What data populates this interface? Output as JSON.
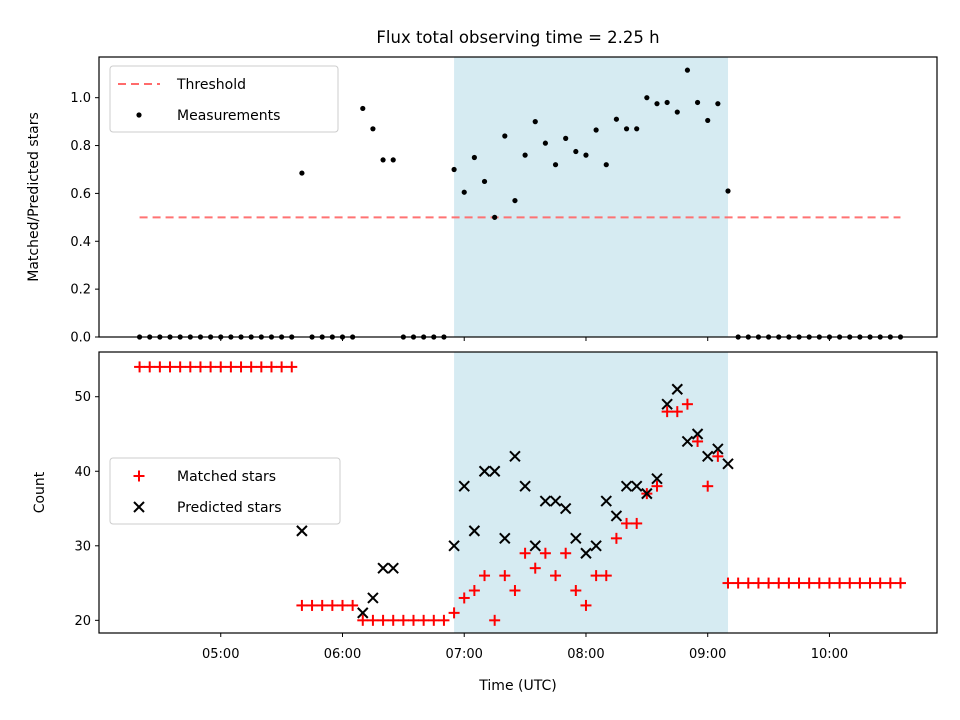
{
  "chart_data": [
    {
      "type": "scatter",
      "title": "Flux total observing time = 2.25 h",
      "xlabel": "",
      "ylabel": "Matched/Predicted stars",
      "ylim": [
        0,
        1.17
      ],
      "yticks": [
        "0.0",
        "0.2",
        "0.4",
        "0.6",
        "0.8",
        "1.0"
      ],
      "xlim": [
        "04:00",
        "10:53"
      ],
      "shaded_span": [
        "06:55",
        "09:10"
      ],
      "shaded_color": "#add8e6",
      "legend": "upper-left",
      "threshold": {
        "name": "Threshold",
        "value": 0.5,
        "x_from": "04:20",
        "x_to": "10:35",
        "color": "#ff6b6b",
        "style": "dashed"
      },
      "series": [
        {
          "name": "Measurements",
          "color": "#000000",
          "marker": "dot",
          "points": [
            [
              "04:20",
              0
            ],
            [
              "04:25",
              0
            ],
            [
              "04:30",
              0
            ],
            [
              "04:35",
              0
            ],
            [
              "04:40",
              0
            ],
            [
              "04:45",
              0
            ],
            [
              "04:50",
              0
            ],
            [
              "04:55",
              0
            ],
            [
              "05:00",
              0
            ],
            [
              "05:05",
              0
            ],
            [
              "05:10",
              0
            ],
            [
              "05:15",
              0
            ],
            [
              "05:20",
              0
            ],
            [
              "05:25",
              0
            ],
            [
              "05:30",
              0
            ],
            [
              "05:35",
              0
            ],
            [
              "05:40",
              0.685
            ],
            [
              "05:45",
              0
            ],
            [
              "05:50",
              0
            ],
            [
              "05:55",
              0
            ],
            [
              "06:00",
              0
            ],
            [
              "06:05",
              0
            ],
            [
              "06:10",
              0.955
            ],
            [
              "06:15",
              0.87
            ],
            [
              "06:20",
              0.74
            ],
            [
              "06:25",
              0.74
            ],
            [
              "06:30",
              0
            ],
            [
              "06:35",
              0
            ],
            [
              "06:40",
              0
            ],
            [
              "06:45",
              0
            ],
            [
              "06:50",
              0
            ],
            [
              "06:55",
              0.7
            ],
            [
              "07:00",
              0.605
            ],
            [
              "07:05",
              0.75
            ],
            [
              "07:10",
              0.65
            ],
            [
              "07:15",
              0.5
            ],
            [
              "07:20",
              0.84
            ],
            [
              "07:25",
              0.57
            ],
            [
              "07:30",
              0.76
            ],
            [
              "07:35",
              0.9
            ],
            [
              "07:40",
              0.81
            ],
            [
              "07:45",
              0.72
            ],
            [
              "07:50",
              0.83
            ],
            [
              "07:55",
              0.775
            ],
            [
              "08:00",
              0.76
            ],
            [
              "08:05",
              0.865
            ],
            [
              "08:10",
              0.72
            ],
            [
              "08:15",
              0.91
            ],
            [
              "08:20",
              0.87
            ],
            [
              "08:25",
              0.87
            ],
            [
              "08:30",
              1.0
            ],
            [
              "08:35",
              0.975
            ],
            [
              "08:40",
              0.98
            ],
            [
              "08:45",
              0.94
            ],
            [
              "08:50",
              1.115
            ],
            [
              "08:55",
              0.98
            ],
            [
              "09:00",
              0.905
            ],
            [
              "09:05",
              0.975
            ],
            [
              "09:10",
              0.61
            ],
            [
              "09:15",
              0
            ],
            [
              "09:20",
              0
            ],
            [
              "09:25",
              0
            ],
            [
              "09:30",
              0
            ],
            [
              "09:35",
              0
            ],
            [
              "09:40",
              0
            ],
            [
              "09:45",
              0
            ],
            [
              "09:50",
              0
            ],
            [
              "09:55",
              0
            ],
            [
              "10:00",
              0
            ],
            [
              "10:05",
              0
            ],
            [
              "10:10",
              0
            ],
            [
              "10:15",
              0
            ],
            [
              "10:20",
              0
            ],
            [
              "10:25",
              0
            ],
            [
              "10:30",
              0
            ],
            [
              "10:35",
              0
            ]
          ]
        }
      ]
    },
    {
      "type": "scatter",
      "title": "",
      "xlabel": "Time (UTC)",
      "ylabel": "Count",
      "ylim": [
        18.3,
        56
      ],
      "yticks": [
        "20",
        "30",
        "40",
        "50"
      ],
      "xticks": [
        "05:00",
        "06:00",
        "07:00",
        "08:00",
        "09:00",
        "10:00"
      ],
      "xlim": [
        "04:00",
        "10:53"
      ],
      "shaded_span": [
        "06:55",
        "09:10"
      ],
      "shaded_color": "#add8e6",
      "legend": "center-left",
      "series": [
        {
          "name": "Matched stars",
          "color": "#ff0000",
          "marker": "plus",
          "points": [
            [
              "04:20",
              54
            ],
            [
              "04:25",
              54
            ],
            [
              "04:30",
              54
            ],
            [
              "04:35",
              54
            ],
            [
              "04:40",
              54
            ],
            [
              "04:45",
              54
            ],
            [
              "04:50",
              54
            ],
            [
              "04:55",
              54
            ],
            [
              "05:00",
              54
            ],
            [
              "05:05",
              54
            ],
            [
              "05:10",
              54
            ],
            [
              "05:15",
              54
            ],
            [
              "05:20",
              54
            ],
            [
              "05:25",
              54
            ],
            [
              "05:30",
              54
            ],
            [
              "05:35",
              54
            ],
            [
              "05:40",
              22
            ],
            [
              "05:45",
              22
            ],
            [
              "05:50",
              22
            ],
            [
              "05:55",
              22
            ],
            [
              "06:00",
              22
            ],
            [
              "06:05",
              22
            ],
            [
              "06:10",
              20
            ],
            [
              "06:15",
              20
            ],
            [
              "06:20",
              20
            ],
            [
              "06:25",
              20
            ],
            [
              "06:30",
              20
            ],
            [
              "06:35",
              20
            ],
            [
              "06:40",
              20
            ],
            [
              "06:45",
              20
            ],
            [
              "06:50",
              20
            ],
            [
              "06:55",
              21
            ],
            [
              "07:00",
              23
            ],
            [
              "07:05",
              24
            ],
            [
              "07:10",
              26
            ],
            [
              "07:15",
              20
            ],
            [
              "07:20",
              26
            ],
            [
              "07:25",
              24
            ],
            [
              "07:30",
              29
            ],
            [
              "07:35",
              27
            ],
            [
              "07:40",
              29
            ],
            [
              "07:45",
              26
            ],
            [
              "07:50",
              29
            ],
            [
              "07:55",
              24
            ],
            [
              "08:00",
              22
            ],
            [
              "08:05",
              26
            ],
            [
              "08:10",
              26
            ],
            [
              "08:15",
              31
            ],
            [
              "08:20",
              33
            ],
            [
              "08:25",
              33
            ],
            [
              "08:30",
              37
            ],
            [
              "08:35",
              38
            ],
            [
              "08:40",
              48
            ],
            [
              "08:45",
              48
            ],
            [
              "08:50",
              49
            ],
            [
              "08:55",
              44
            ],
            [
              "09:00",
              38
            ],
            [
              "09:05",
              42
            ],
            [
              "09:10",
              25
            ],
            [
              "09:15",
              25
            ],
            [
              "09:20",
              25
            ],
            [
              "09:25",
              25
            ],
            [
              "09:30",
              25
            ],
            [
              "09:35",
              25
            ],
            [
              "09:40",
              25
            ],
            [
              "09:45",
              25
            ],
            [
              "09:50",
              25
            ],
            [
              "09:55",
              25
            ],
            [
              "10:00",
              25
            ],
            [
              "10:05",
              25
            ],
            [
              "10:10",
              25
            ],
            [
              "10:15",
              25
            ],
            [
              "10:20",
              25
            ],
            [
              "10:25",
              25
            ],
            [
              "10:30",
              25
            ],
            [
              "10:35",
              25
            ]
          ]
        },
        {
          "name": "Predicted stars",
          "color": "#000000",
          "marker": "x",
          "points": [
            [
              "05:40",
              32
            ],
            [
              "06:10",
              21
            ],
            [
              "06:15",
              23
            ],
            [
              "06:20",
              27
            ],
            [
              "06:25",
              27
            ],
            [
              "06:55",
              30
            ],
            [
              "07:00",
              38
            ],
            [
              "07:05",
              32
            ],
            [
              "07:10",
              40
            ],
            [
              "07:15",
              40
            ],
            [
              "07:20",
              31
            ],
            [
              "07:25",
              42
            ],
            [
              "07:30",
              38
            ],
            [
              "07:35",
              30
            ],
            [
              "07:40",
              36
            ],
            [
              "07:45",
              36
            ],
            [
              "07:50",
              35
            ],
            [
              "07:55",
              31
            ],
            [
              "08:00",
              29
            ],
            [
              "08:05",
              30
            ],
            [
              "08:10",
              36
            ],
            [
              "08:15",
              34
            ],
            [
              "08:20",
              38
            ],
            [
              "08:25",
              38
            ],
            [
              "08:30",
              37
            ],
            [
              "08:35",
              39
            ],
            [
              "08:40",
              49
            ],
            [
              "08:45",
              51
            ],
            [
              "08:50",
              44
            ],
            [
              "08:55",
              45
            ],
            [
              "09:00",
              42
            ],
            [
              "09:05",
              43
            ],
            [
              "09:10",
              41
            ]
          ]
        }
      ]
    }
  ]
}
